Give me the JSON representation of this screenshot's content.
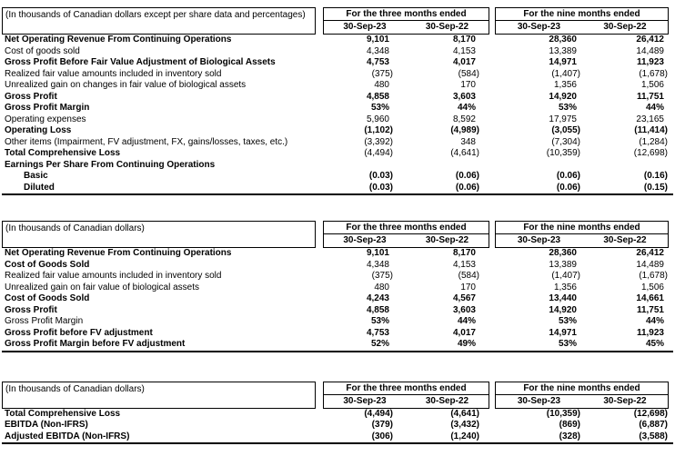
{
  "colors": {
    "text": "#000000",
    "border": "#000000",
    "background": "#ffffff"
  },
  "tables": [
    {
      "unit_label": "(In thousands of Canadian dollars except per share data and percentages)",
      "col_groups": [
        "For the three months ended",
        "For the nine months ended"
      ],
      "col_headers": [
        "30-Sep-23",
        "30-Sep-22",
        "30-Sep-23",
        "30-Sep-22"
      ],
      "rows": [
        {
          "label": "Net Operating Revenue From Continuing Operations",
          "bold_label": true,
          "bold_values": true,
          "values": [
            "9,101",
            "8,170",
            "28,360",
            "26,412"
          ]
        },
        {
          "label": "Cost of goods sold",
          "bold_label": false,
          "bold_values": false,
          "values": [
            "4,348",
            "4,153",
            "13,389",
            "14,489"
          ]
        },
        {
          "label": "Gross Profit Before Fair Value Adjustment of Biological Assets",
          "bold_label": true,
          "bold_values": true,
          "values": [
            "4,753",
            "4,017",
            "14,971",
            "11,923"
          ]
        },
        {
          "label": "Realized fair value amounts included in inventory sold",
          "bold_label": false,
          "bold_values": false,
          "values": [
            "(375)",
            "(584)",
            "(1,407)",
            "(1,678)"
          ]
        },
        {
          "label": "Unrealized gain on changes in fair value of biological assets",
          "bold_label": false,
          "bold_values": false,
          "values": [
            "480",
            "170",
            "1,356",
            "1,506"
          ]
        },
        {
          "label": "Gross Profit",
          "bold_label": true,
          "bold_values": true,
          "values": [
            "4,858",
            "3,603",
            "14,920",
            "11,751"
          ]
        },
        {
          "label": "Gross Profit Margin",
          "bold_label": true,
          "bold_values": true,
          "values": [
            "53%",
            "44%",
            "53%",
            "44%"
          ]
        },
        {
          "label": "Operating expenses",
          "bold_label": false,
          "bold_values": false,
          "values": [
            "5,960",
            "8,592",
            "17,975",
            "23,165"
          ]
        },
        {
          "label": "Operating Loss",
          "bold_label": true,
          "bold_values": true,
          "values": [
            "(1,102)",
            "(4,989)",
            "(3,055)",
            "(11,414)"
          ]
        },
        {
          "label": "Other items (Impairment, FV adjustment, FX, gains/losses, taxes, etc.)",
          "wrap": true,
          "bold_label": false,
          "bold_values": false,
          "values": [
            "(3,392)",
            "348",
            "(7,304)",
            "(1,284)"
          ]
        },
        {
          "label": "Total Comprehensive Loss",
          "bold_label": true,
          "bold_values": false,
          "values": [
            "(4,494)",
            "(4,641)",
            "(10,359)",
            "(12,698)"
          ]
        },
        {
          "label": "Earnings Per Share From Continuing Operations",
          "bold_label": true,
          "bold_values": false,
          "values": [
            "",
            "",
            "",
            ""
          ]
        },
        {
          "label": "Basic",
          "indent": true,
          "bold_label": true,
          "bold_values": true,
          "values": [
            "(0.03)",
            "(0.06)",
            "(0.06)",
            "(0.16)"
          ]
        },
        {
          "label": "Diluted",
          "indent": true,
          "bold_label": true,
          "bold_values": true,
          "values": [
            "(0.03)",
            "(0.06)",
            "(0.06)",
            "(0.15)"
          ]
        }
      ]
    },
    {
      "unit_label": "(In thousands of Canadian dollars)",
      "col_groups": [
        "For the three months ended",
        "For the nine months ended"
      ],
      "col_headers": [
        "30-Sep-23",
        "30-Sep-22",
        "30-Sep-23",
        "30-Sep-22"
      ],
      "rows": [
        {
          "label": "Net Operating Revenue From Continuing Operations",
          "bold_label": true,
          "bold_values": true,
          "values": [
            "9,101",
            "8,170",
            "28,360",
            "26,412"
          ]
        },
        {
          "label": "Cost of Goods Sold",
          "bold_label": true,
          "bold_values": false,
          "values": [
            "4,348",
            "4,153",
            "13,389",
            "14,489"
          ]
        },
        {
          "label": "Realized fair value amounts included in inventory sold",
          "bold_label": false,
          "bold_values": false,
          "values": [
            "(375)",
            "(584)",
            "(1,407)",
            "(1,678)"
          ]
        },
        {
          "label": "Unrealized gain on fair value of biological assets",
          "bold_label": false,
          "bold_values": false,
          "values": [
            "480",
            "170",
            "1,356",
            "1,506"
          ]
        },
        {
          "label": "Cost of Goods Sold",
          "bold_label": true,
          "bold_values": true,
          "values": [
            "4,243",
            "4,567",
            "13,440",
            "14,661"
          ]
        },
        {
          "label": "Gross Profit",
          "bold_label": true,
          "bold_values": true,
          "values": [
            "4,858",
            "3,603",
            "14,920",
            "11,751"
          ]
        },
        {
          "label": "Gross Profit Margin",
          "bold_label": false,
          "bold_values": true,
          "values": [
            "53%",
            "44%",
            "53%",
            "44%"
          ]
        },
        {
          "label": "Gross Profit before FV adjustment",
          "bold_label": true,
          "bold_values": true,
          "values": [
            "4,753",
            "4,017",
            "14,971",
            "11,923"
          ]
        },
        {
          "label": "Gross Profit Margin before FV adjustment",
          "bold_label": true,
          "bold_values": true,
          "values": [
            "52%",
            "49%",
            "53%",
            "45%"
          ]
        }
      ]
    },
    {
      "unit_label": "(In thousands of Canadian dollars)",
      "col_groups": [
        "For the three months ended",
        "For the nine months ended"
      ],
      "col_headers": [
        "30-Sep-23",
        "30-Sep-22",
        "30-Sep-23",
        "30-Sep-22"
      ],
      "rows": [
        {
          "label": "Total Comprehensive Loss",
          "bold_label": true,
          "bold_values": true,
          "values": [
            "(4,494)",
            "(4,641)",
            "(10,359)",
            "(12,698)"
          ]
        },
        {
          "label": "EBITDA (Non-IFRS)",
          "bold_label": true,
          "bold_values": true,
          "values": [
            "(379)",
            "(3,432)",
            "(869)",
            "(6,887)"
          ]
        },
        {
          "label": "Adjusted EBITDA (Non-IFRS)",
          "bold_label": true,
          "bold_values": true,
          "values": [
            "(306)",
            "(1,240)",
            "(328)",
            "(3,588)"
          ]
        }
      ]
    }
  ]
}
